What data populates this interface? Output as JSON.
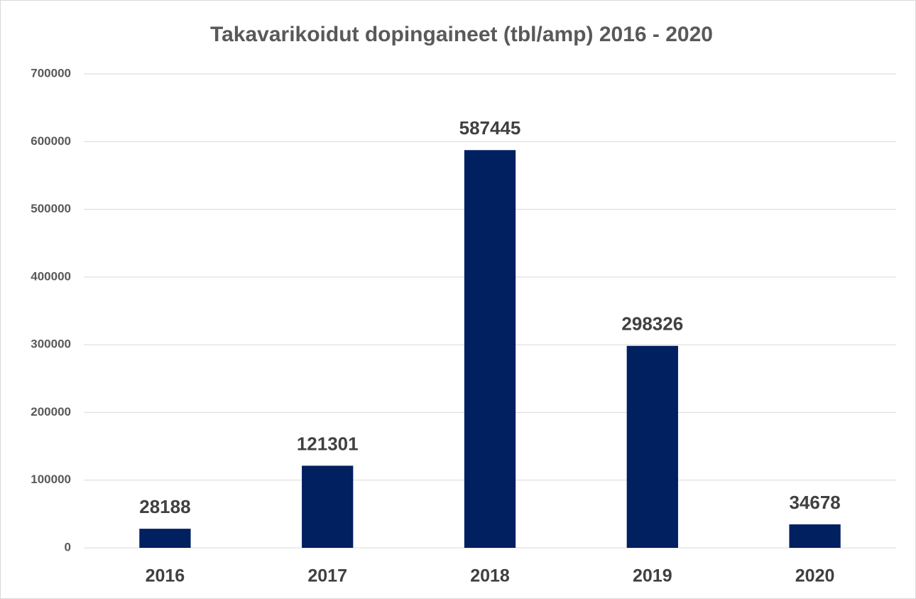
{
  "chart_data": {
    "type": "bar",
    "title": "Takavarikoidut dopingaineet (tbl/amp) 2016 - 2020",
    "categories": [
      "2016",
      "2017",
      "2018",
      "2019",
      "2020"
    ],
    "values": [
      28188,
      121301,
      587445,
      298326,
      34678
    ],
    "color": "#002060",
    "ylim": [
      0,
      700000
    ],
    "yticks": [
      0,
      100000,
      200000,
      300000,
      400000,
      500000,
      600000,
      700000
    ],
    "grid": true
  }
}
